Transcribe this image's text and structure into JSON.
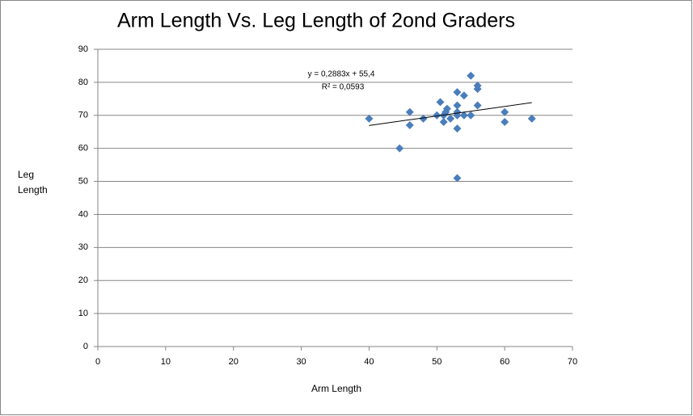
{
  "chart_data": {
    "type": "scatter",
    "title": "Arm Length Vs. Leg Length of 2ond Graders",
    "x_label": "Arm Length",
    "y_label": "Leg Length",
    "x": [
      40,
      44.5,
      46,
      46,
      48,
      50,
      50.5,
      51,
      51,
      51.3,
      51.5,
      52,
      53,
      53,
      53,
      53,
      53,
      53,
      54,
      54,
      55,
      55,
      56,
      56,
      56,
      60,
      60,
      64
    ],
    "values": [
      69,
      60,
      71,
      67,
      69,
      70,
      74,
      68,
      70,
      71,
      72,
      69,
      77,
      73,
      71,
      70,
      66,
      51,
      76,
      70,
      82,
      70,
      79,
      78,
      73,
      71,
      68,
      69
    ],
    "color": "#4a7ebb",
    "xlim": [
      0,
      70
    ],
    "xticks": [
      0,
      10,
      20,
      30,
      40,
      50,
      60,
      70
    ],
    "ylim": [
      0,
      90
    ],
    "yticks": [
      0,
      10,
      20,
      30,
      40,
      50,
      60,
      70,
      80,
      90
    ],
    "grid": true,
    "trendline": {
      "slope": 0.2883,
      "intercept": 55.4,
      "label": "y = 0,2883x + 55,4",
      "r2_label": "R² = 0,0593"
    }
  }
}
